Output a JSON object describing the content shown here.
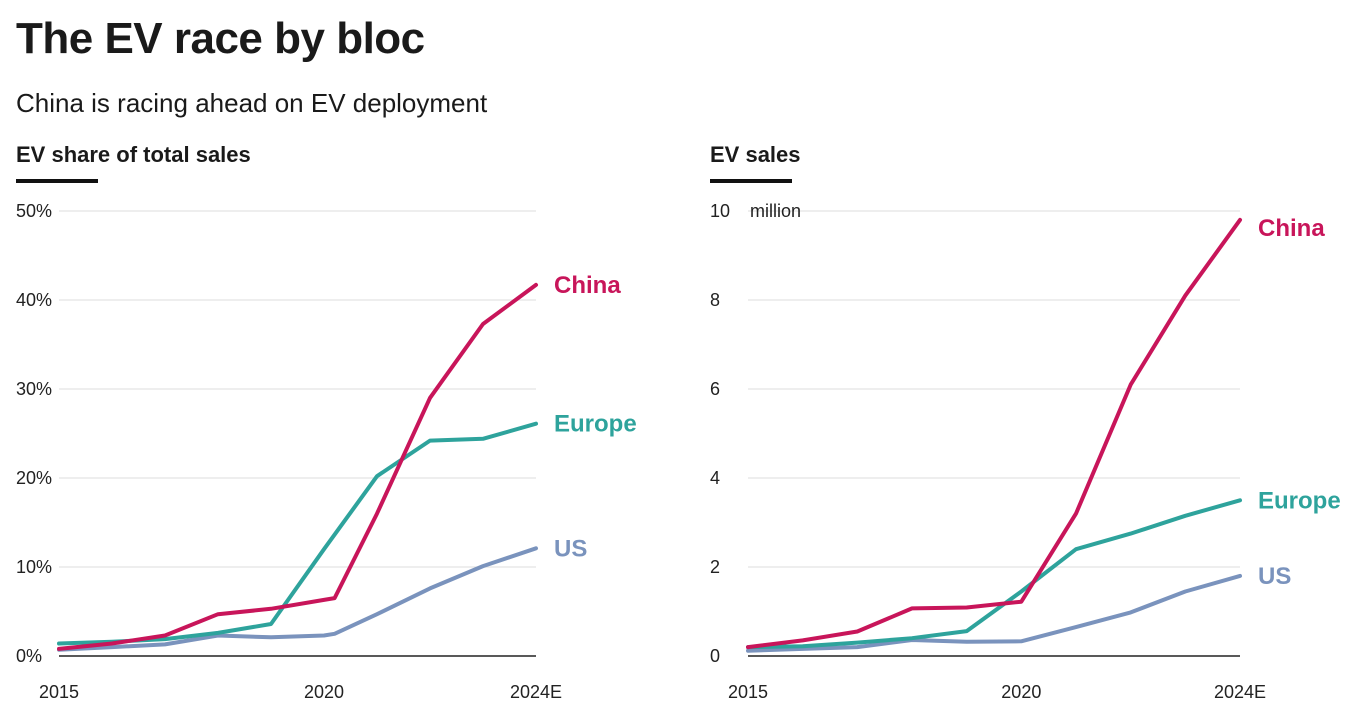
{
  "header": {
    "title": "The EV race by bloc",
    "subtitle": "China is racing ahead on EV deployment"
  },
  "colors": {
    "China": "#c8155a",
    "Europe": "#2ea39c",
    "US": "#7a93bd",
    "grid": "#e3e3e3",
    "axis": "#222222"
  },
  "chart_data": [
    {
      "type": "line",
      "title": "EV share of total sales",
      "x_tick_labels": [
        "2015",
        "2020",
        "2024E"
      ],
      "x": [
        2015,
        2016,
        2017,
        2018,
        2019,
        2020,
        2020.2,
        2021,
        2022,
        2023,
        2024
      ],
      "y_tick_labels": [
        "0%",
        "10%",
        "20%",
        "30%",
        "40%",
        "50%"
      ],
      "y_ticks": [
        0,
        10,
        20,
        30,
        40,
        50
      ],
      "ylim": [
        0,
        50
      ],
      "unit_label": "",
      "series": [
        {
          "name": "China",
          "values": [
            0.8,
            1.4,
            2.3,
            4.7,
            5.3,
            6.3,
            6.5,
            16.0,
            29.0,
            37.3,
            41.7
          ]
        },
        {
          "name": "Europe",
          "values": [
            1.4,
            1.6,
            1.9,
            2.6,
            3.6,
            12.0,
            null,
            20.2,
            24.2,
            24.4,
            26.1
          ]
        },
        {
          "name": "US",
          "values": [
            0.7,
            1.0,
            1.3,
            2.3,
            2.1,
            2.3,
            2.5,
            4.7,
            7.6,
            10.1,
            12.1
          ]
        }
      ]
    },
    {
      "type": "line",
      "title": "EV sales",
      "x_tick_labels": [
        "2015",
        "2020",
        "2024E"
      ],
      "x": [
        2015,
        2016,
        2017,
        2018,
        2019,
        2020,
        2021,
        2022,
        2023,
        2024
      ],
      "y_tick_labels": [
        "0",
        "2",
        "4",
        "6",
        "8",
        "10"
      ],
      "y_ticks": [
        0,
        2,
        4,
        6,
        8,
        10
      ],
      "ylim": [
        0,
        10
      ],
      "unit_label": "million",
      "series": [
        {
          "name": "China",
          "values": [
            0.2,
            0.35,
            0.55,
            1.07,
            1.09,
            1.22,
            3.2,
            6.1,
            8.1,
            9.8
          ]
        },
        {
          "name": "Europe",
          "values": [
            0.2,
            0.22,
            0.3,
            0.4,
            0.56,
            1.45,
            2.4,
            2.75,
            3.15,
            3.5
          ]
        },
        {
          "name": "US",
          "values": [
            0.12,
            0.16,
            0.2,
            0.36,
            0.32,
            0.33,
            0.65,
            0.98,
            1.45,
            1.8
          ]
        }
      ]
    }
  ]
}
